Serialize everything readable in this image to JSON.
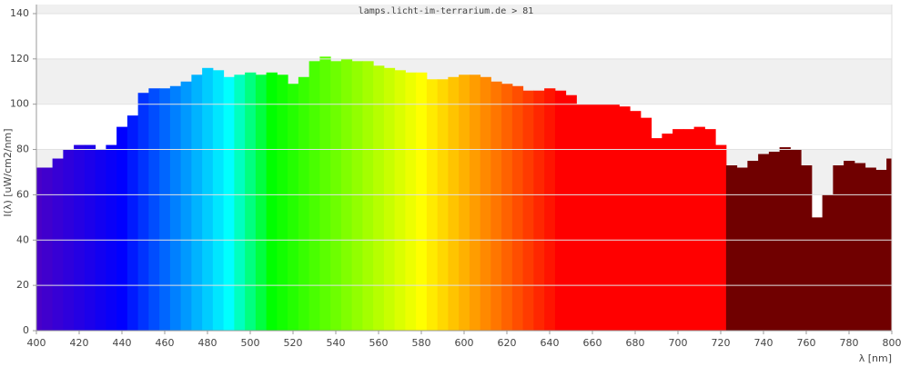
{
  "chart_data": {
    "type": "area",
    "title": "lamps.licht-im-terrarium.de > 81",
    "x_label": "λ [nm]",
    "y_label": "I(λ) [uW/cm2/nm]",
    "x": [
      400,
      405,
      410,
      415,
      420,
      425,
      430,
      435,
      440,
      445,
      450,
      455,
      460,
      465,
      470,
      475,
      480,
      485,
      490,
      495,
      500,
      505,
      510,
      515,
      520,
      525,
      530,
      535,
      540,
      545,
      550,
      555,
      560,
      565,
      570,
      575,
      580,
      585,
      590,
      595,
      600,
      605,
      610,
      615,
      620,
      625,
      630,
      635,
      640,
      645,
      650,
      655,
      660,
      665,
      670,
      675,
      680,
      685,
      690,
      695,
      700,
      705,
      710,
      715,
      720,
      725,
      730,
      735,
      740,
      745,
      750,
      755,
      760,
      765,
      770,
      775,
      780,
      785,
      790,
      795,
      800
    ],
    "values": [
      72,
      72,
      76,
      80,
      82,
      82,
      80,
      82,
      90,
      95,
      105,
      107,
      107,
      108,
      110,
      113,
      116,
      115,
      112,
      113,
      114,
      113,
      114,
      113,
      109,
      112,
      119,
      121,
      119,
      120,
      119,
      119,
      117,
      116,
      115,
      114,
      114,
      111,
      111,
      112,
      113,
      113,
      112,
      110,
      109,
      108,
      106,
      106,
      107,
      106,
      104,
      100,
      100,
      100,
      100,
      99,
      97,
      94,
      85,
      87,
      89,
      89,
      90,
      89,
      82,
      73,
      72,
      75,
      78,
      79,
      81,
      80,
      73,
      50,
      60,
      73,
      75,
      74,
      72,
      71,
      76
    ],
    "xlim": [
      400,
      800
    ],
    "ylim": [
      0,
      144
    ],
    "xticks": [
      400,
      420,
      440,
      460,
      480,
      500,
      520,
      540,
      560,
      580,
      600,
      620,
      640,
      660,
      680,
      700,
      720,
      740,
      760,
      780,
      800
    ],
    "yticks": [
      0,
      20,
      40,
      60,
      80,
      100,
      120,
      140
    ],
    "grid": "bands",
    "spectrum_colors": true
  }
}
